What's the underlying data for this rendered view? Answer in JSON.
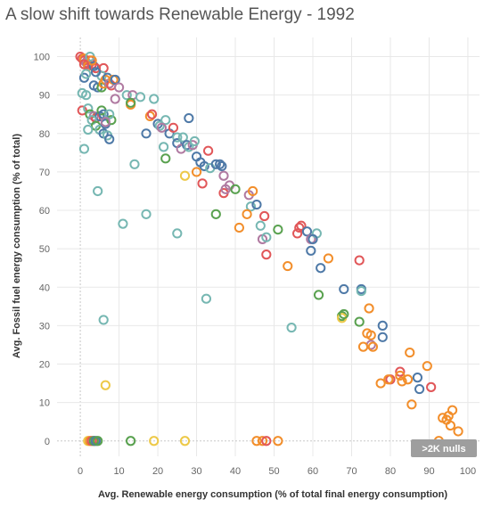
{
  "chart_data": {
    "type": "scatter",
    "title": "A slow shift towards Renewable Energy - 1992",
    "xlabel": "Avg. Renewable energy consumption (% of total final energy consumption)",
    "ylabel": "Avg. Fossil fuel energy consumption (% of total)",
    "xlim": [
      -6,
      103
    ],
    "ylim": [
      -4,
      105
    ],
    "xticks": [
      0,
      10,
      20,
      30,
      40,
      50,
      60,
      70,
      80,
      90,
      100
    ],
    "yticks": [
      0,
      10,
      20,
      30,
      40,
      50,
      60,
      70,
      80,
      90,
      100
    ],
    "grid": true,
    "nulls_badge": ">2K nulls",
    "colors": {
      "teal": "#76b7b2",
      "blue": "#4e79a7",
      "red": "#e15759",
      "orange": "#f28e2b",
      "yellow": "#edc948",
      "green": "#59a14f",
      "pink": "#b07aa1"
    },
    "points": [
      [
        "red",
        0,
        100
      ],
      [
        "red",
        0.5,
        99.5
      ],
      [
        "red",
        1,
        99
      ],
      [
        "orange",
        1,
        99.5
      ],
      [
        "pink",
        1.5,
        98.5
      ],
      [
        "red",
        2,
        98
      ],
      [
        "red",
        2.5,
        99
      ],
      [
        "orange",
        2,
        97.5
      ],
      [
        "red",
        3,
        98
      ],
      [
        "blue",
        3.5,
        97.5
      ],
      [
        "red",
        4,
        97
      ],
      [
        "teal",
        2.5,
        100
      ],
      [
        "orange",
        3,
        99
      ],
      [
        "red",
        1,
        98
      ],
      [
        "blue",
        1,
        94.5
      ],
      [
        "teal",
        1.5,
        95.5
      ],
      [
        "red",
        6,
        97
      ],
      [
        "teal",
        0.5,
        90.5
      ],
      [
        "teal",
        1.5,
        90
      ],
      [
        "blue",
        3.5,
        92.5
      ],
      [
        "blue",
        4.5,
        92
      ],
      [
        "green",
        5.5,
        92
      ],
      [
        "teal",
        5.5,
        95
      ],
      [
        "blue",
        4,
        96
      ],
      [
        "orange",
        6,
        93
      ],
      [
        "orange",
        6.5,
        94
      ],
      [
        "blue",
        7,
        94.5
      ],
      [
        "pink",
        7.5,
        93
      ],
      [
        "red",
        8,
        92.5
      ],
      [
        "orange",
        8.5,
        94
      ],
      [
        "blue",
        9,
        94
      ],
      [
        "pink",
        10,
        92
      ],
      [
        "teal",
        12,
        90
      ],
      [
        "pink",
        13.5,
        90
      ],
      [
        "teal",
        15.5,
        89.5
      ],
      [
        "teal",
        19,
        89
      ],
      [
        "red",
        0.5,
        86
      ],
      [
        "teal",
        2,
        86.5
      ],
      [
        "green",
        2.5,
        85
      ],
      [
        "pink",
        3.5,
        84.5
      ],
      [
        "red",
        4,
        84
      ],
      [
        "blue",
        5,
        84.5
      ],
      [
        "green",
        5.5,
        86
      ],
      [
        "blue",
        6,
        85
      ],
      [
        "teal",
        3,
        83.5
      ],
      [
        "green",
        4,
        82
      ],
      [
        "teal",
        2,
        81
      ],
      [
        "teal",
        5,
        81
      ],
      [
        "blue",
        6.5,
        82.5
      ],
      [
        "blue",
        6,
        80
      ],
      [
        "teal",
        7,
        79.5
      ],
      [
        "green",
        8,
        83.5
      ],
      [
        "teal",
        7.5,
        85
      ],
      [
        "pink",
        9,
        89
      ],
      [
        "blue",
        7.5,
        78.5
      ],
      [
        "pink",
        6.5,
        83
      ],
      [
        "teal",
        1,
        76
      ],
      [
        "orange",
        13,
        87.5
      ],
      [
        "green",
        13,
        88
      ],
      [
        "orange",
        18,
        84.5
      ],
      [
        "red",
        18.5,
        85
      ],
      [
        "blue",
        17,
        80
      ],
      [
        "blue",
        20,
        82.5
      ],
      [
        "teal",
        20.5,
        82
      ],
      [
        "teal",
        22,
        83.5
      ],
      [
        "pink",
        21,
        81.5
      ],
      [
        "blue",
        23,
        80
      ],
      [
        "red",
        24,
        81.5
      ],
      [
        "teal",
        25,
        79
      ],
      [
        "blue",
        25,
        77.5
      ],
      [
        "pink",
        26,
        76
      ],
      [
        "teal",
        26.5,
        79
      ],
      [
        "blue",
        27.5,
        77
      ],
      [
        "teal",
        28,
        76.5
      ],
      [
        "pink",
        29,
        77
      ],
      [
        "teal",
        29.5,
        78
      ],
      [
        "blue",
        30,
        74
      ],
      [
        "blue",
        31,
        72.5
      ],
      [
        "blue",
        32,
        71.5
      ],
      [
        "red",
        33,
        75.5
      ],
      [
        "teal",
        21.5,
        76.5
      ],
      [
        "green",
        22,
        73.5
      ],
      [
        "blue",
        28,
        84
      ],
      [
        "teal",
        14,
        72
      ],
      [
        "red",
        31.5,
        67
      ],
      [
        "yellow",
        27,
        69
      ],
      [
        "orange",
        30,
        70
      ],
      [
        "teal",
        33.5,
        71
      ],
      [
        "blue",
        35,
        72
      ],
      [
        "blue",
        36,
        72
      ],
      [
        "blue",
        36.5,
        71.5
      ],
      [
        "pink",
        37,
        69
      ],
      [
        "red",
        37,
        64.5
      ],
      [
        "pink",
        37.5,
        65.5
      ],
      [
        "pink",
        38.5,
        66.5
      ],
      [
        "green",
        40,
        65.5
      ],
      [
        "pink",
        43.5,
        64
      ],
      [
        "orange",
        44.5,
        65
      ],
      [
        "teal",
        44,
        61
      ],
      [
        "blue",
        45.5,
        61.5
      ],
      [
        "red",
        47.5,
        58.5
      ],
      [
        "orange",
        43,
        59
      ],
      [
        "teal",
        4.5,
        65
      ],
      [
        "green",
        35,
        59
      ],
      [
        "teal",
        17,
        59
      ],
      [
        "teal",
        11,
        56.5
      ],
      [
        "teal",
        25,
        54
      ],
      [
        "orange",
        41,
        55.5
      ],
      [
        "teal",
        46.5,
        56
      ],
      [
        "pink",
        47,
        52.5
      ],
      [
        "teal",
        48,
        53
      ],
      [
        "green",
        51,
        55
      ],
      [
        "red",
        56.5,
        55.5
      ],
      [
        "red",
        57,
        56
      ],
      [
        "red",
        56,
        54
      ],
      [
        "blue",
        58.5,
        54.5
      ],
      [
        "pink",
        59.5,
        52.5
      ],
      [
        "teal",
        61,
        54
      ],
      [
        "blue",
        60,
        52.5
      ],
      [
        "blue",
        59.5,
        49.5
      ],
      [
        "red",
        48,
        48.5
      ],
      [
        "orange",
        53.5,
        45.5
      ],
      [
        "blue",
        62,
        45
      ],
      [
        "orange",
        64,
        47.5
      ],
      [
        "red",
        72,
        47
      ],
      [
        "blue",
        68,
        39.5
      ],
      [
        "blue",
        72.5,
        39.5
      ],
      [
        "teal",
        72.5,
        39
      ],
      [
        "green",
        61.5,
        38
      ],
      [
        "teal",
        32.5,
        37
      ],
      [
        "green",
        67.5,
        32.5
      ],
      [
        "yellow",
        67.5,
        32
      ],
      [
        "green",
        68,
        33
      ],
      [
        "green",
        72,
        31
      ],
      [
        "orange",
        74.5,
        34.5
      ],
      [
        "teal",
        6,
        31.5
      ],
      [
        "teal",
        54.5,
        29.5
      ],
      [
        "orange",
        74,
        28
      ],
      [
        "orange",
        75,
        27.5
      ],
      [
        "pink",
        75,
        25
      ],
      [
        "orange",
        75.5,
        24.5
      ],
      [
        "orange",
        73,
        24.5
      ],
      [
        "blue",
        78,
        30
      ],
      [
        "blue",
        78,
        27
      ],
      [
        "orange",
        85,
        23
      ],
      [
        "orange",
        89.5,
        19.5
      ],
      [
        "orange",
        77.5,
        15
      ],
      [
        "red",
        80,
        16
      ],
      [
        "orange",
        79.5,
        16
      ],
      [
        "red",
        82.5,
        18
      ],
      [
        "orange",
        82.5,
        17
      ],
      [
        "orange",
        83,
        15.5
      ],
      [
        "orange",
        84.5,
        16
      ],
      [
        "blue",
        87,
        16.5
      ],
      [
        "blue",
        87.5,
        13.5
      ],
      [
        "red",
        90.5,
        14
      ],
      [
        "yellow",
        6.5,
        14.5
      ],
      [
        "orange",
        85.5,
        9.5
      ],
      [
        "orange",
        93.5,
        6
      ],
      [
        "orange",
        95,
        6.5
      ],
      [
        "orange",
        96,
        8
      ],
      [
        "orange",
        94.5,
        5.5
      ],
      [
        "orange",
        95.5,
        4
      ],
      [
        "orange",
        97.5,
        2.5
      ],
      [
        "orange",
        92.5,
        0
      ],
      [
        "yellow",
        2,
        0
      ],
      [
        "orange",
        2.5,
        0
      ],
      [
        "red",
        3,
        0
      ],
      [
        "orange",
        3.5,
        0
      ],
      [
        "green",
        3.5,
        0
      ],
      [
        "blue",
        4,
        0
      ],
      [
        "green",
        4.5,
        0
      ],
      [
        "green",
        13,
        0
      ],
      [
        "yellow",
        19,
        0
      ],
      [
        "yellow",
        27,
        0
      ],
      [
        "orange",
        45.5,
        0
      ],
      [
        "orange",
        47,
        0
      ],
      [
        "red",
        48,
        0
      ],
      [
        "orange",
        51,
        0
      ]
    ]
  }
}
